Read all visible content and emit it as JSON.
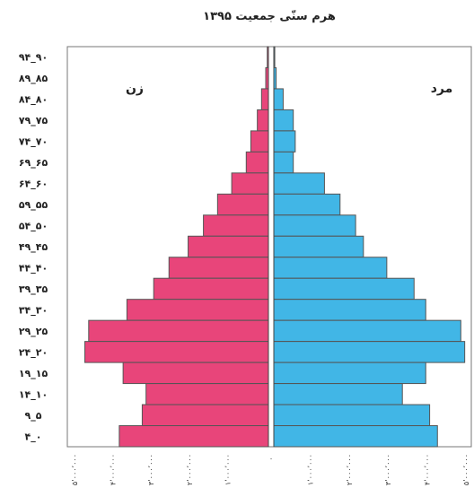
{
  "chart_data": {
    "type": "bar",
    "orientation": "horizontal",
    "layout": "population-pyramid",
    "title": "هرم سنّی جمعیت ۱۳۹۵",
    "categories": [
      "۹۴_۹۰",
      "۸۹_۸۵",
      "۸۴_۸۰",
      "۷۹_۷۵",
      "۷۴_۷۰",
      "۶۹_۶۵",
      "۶۴_۶۰",
      "۵۹_۵۵",
      "۵۴_۵۰",
      "۴۹_۴۵",
      "۴۴_۴۰",
      "۳۹_۳۵",
      "۳۴_۳۰",
      "۲۹_۲۵",
      "۲۴_۲۰",
      "۱۹_۱۵",
      "۱۴_۱۰",
      "۹_۵",
      "۴_۰"
    ],
    "series": [
      {
        "name": "زن",
        "side": "left",
        "color": "#e8457a",
        "values": [
          30000,
          70000,
          180000,
          290000,
          460000,
          580000,
          960000,
          1330000,
          1700000,
          2100000,
          2600000,
          3000000,
          3700000,
          4700000,
          4800000,
          3800000,
          3200000,
          3300000,
          3900000
        ]
      },
      {
        "name": "مرد",
        "side": "right",
        "color": "#41b6e6",
        "values": [
          25000,
          60000,
          240000,
          500000,
          550000,
          500000,
          1300000,
          1700000,
          2100000,
          2300000,
          2900000,
          3600000,
          3900000,
          4800000,
          4900000,
          3900000,
          3300000,
          4000000,
          4200000
        ]
      }
    ],
    "xlim": [
      0,
      5000000
    ],
    "tick_values": [
      0,
      1000000,
      2000000,
      3000000,
      4000000,
      5000000
    ],
    "tick_labels": [
      "۰",
      "۱٬۰۰۰٬۰۰۰",
      "۲٬۰۰۰٬۰۰۰",
      "۳٬۰۰۰٬۰۰۰",
      "۴٬۰۰۰٬۰۰۰",
      "۵٬۰۰۰٬۰۰۰"
    ],
    "grid": false,
    "legend": "inside-top-corners"
  }
}
